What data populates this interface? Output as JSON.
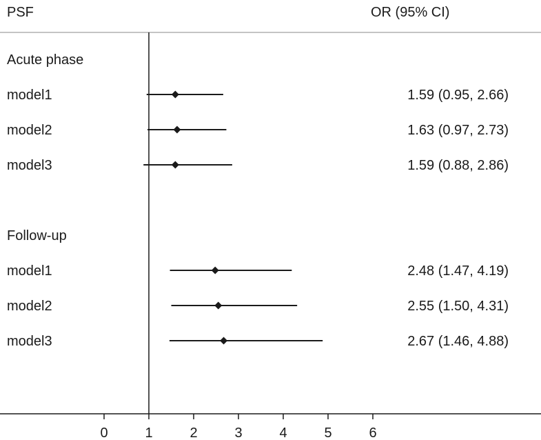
{
  "chart_data": {
    "type": "forest",
    "header": {
      "left": "PSF",
      "right": "OR (95% CI)"
    },
    "groups": [
      {
        "label": "Acute phase",
        "rows": [
          {
            "label": "model1",
            "estimate": 1.59,
            "lower": 0.95,
            "upper": 2.66,
            "text": "1.59 (0.95, 2.66)"
          },
          {
            "label": "model2",
            "estimate": 1.63,
            "lower": 0.97,
            "upper": 2.73,
            "text": "1.63 (0.97, 2.73)"
          },
          {
            "label": "model3",
            "estimate": 1.59,
            "lower": 0.88,
            "upper": 2.86,
            "text": "1.59 (0.88, 2.86)"
          }
        ]
      },
      {
        "label": "Follow-up",
        "rows": [
          {
            "label": "model1",
            "estimate": 2.48,
            "lower": 1.47,
            "upper": 4.19,
            "text": "2.48 (1.47, 4.19)"
          },
          {
            "label": "model2",
            "estimate": 2.55,
            "lower": 1.5,
            "upper": 4.31,
            "text": "2.55 (1.50, 4.31)"
          },
          {
            "label": "model3",
            "estimate": 2.67,
            "lower": 1.46,
            "upper": 4.88,
            "text": "2.67 (1.46, 4.88)"
          }
        ]
      }
    ],
    "x_ticks": [
      0,
      1,
      2,
      3,
      4,
      5,
      6
    ],
    "xlim": [
      0,
      6
    ],
    "reference_line": 1,
    "grid": false
  }
}
